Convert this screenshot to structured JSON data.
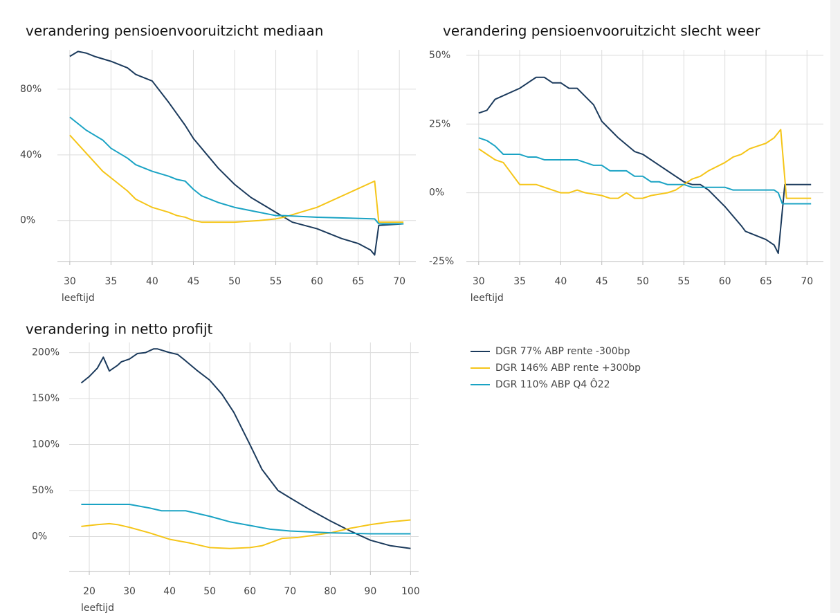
{
  "chart_data": [
    {
      "type": "line",
      "title": "verandering pensioenvooruitzicht mediaan",
      "xlabel": "leeftijd",
      "xlim": [
        28.5,
        72
      ],
      "xticks": [
        30,
        35,
        40,
        45,
        50,
        55,
        60,
        65,
        70
      ],
      "ylim": [
        -25,
        104
      ],
      "yticks": [
        {
          "value": 0,
          "label": "0%"
        },
        {
          "value": 40,
          "label": "40%"
        },
        {
          "value": 80,
          "label": "80%"
        }
      ],
      "grid": true,
      "series": [
        {
          "x": [
            30,
            31,
            32,
            33,
            35,
            37,
            38,
            40,
            42,
            44,
            45,
            47,
            48,
            50,
            52,
            55,
            57,
            60,
            63,
            65,
            66.5,
            67,
            67.5,
            70.5
          ],
          "values": [
            100,
            103,
            102,
            100,
            97,
            93,
            89,
            85,
            72,
            58,
            50,
            38,
            32,
            22,
            14,
            5,
            -1,
            -5,
            -11,
            -14,
            -18,
            -21,
            -3,
            -2
          ]
        },
        {
          "x": [
            30,
            32,
            34,
            35,
            37,
            38,
            40,
            42,
            43,
            44,
            45,
            46,
            48,
            50,
            53,
            55,
            56,
            60,
            67,
            67.5,
            70.5
          ],
          "values": [
            52,
            41,
            30,
            26,
            18,
            13,
            8,
            5,
            3,
            2,
            0,
            -1,
            -1,
            -1,
            0,
            1,
            2,
            8,
            24,
            -1,
            -1
          ]
        },
        {
          "x": [
            30,
            32,
            34,
            35,
            37,
            38,
            40,
            42,
            43,
            44,
            45,
            46,
            48,
            50,
            53,
            55,
            56,
            60,
            67,
            67.5,
            70.5
          ],
          "values": [
            63,
            55,
            49,
            44,
            38,
            34,
            30,
            27,
            25,
            24,
            19,
            15,
            11,
            8,
            5,
            3,
            3,
            2,
            1,
            -2,
            -2
          ]
        }
      ]
    },
    {
      "type": "line",
      "title": "verandering pensioenvooruitzicht slecht weer",
      "xlabel": "leeftijd",
      "xlim": [
        28.5,
        72
      ],
      "xticks": [
        30,
        35,
        40,
        45,
        50,
        55,
        60,
        65,
        70
      ],
      "ylim": [
        -25,
        52
      ],
      "yticks": [
        {
          "value": -25,
          "label": "-25%"
        },
        {
          "value": 0,
          "label": "0%"
        },
        {
          "value": 25,
          "label": "25%"
        },
        {
          "value": 50,
          "label": "50%"
        }
      ],
      "grid": true,
      "series": [
        {
          "x": [
            30,
            31,
            32,
            35,
            37,
            38,
            39,
            40,
            41,
            42,
            43,
            44,
            45,
            46,
            47,
            49,
            50,
            52,
            53,
            54,
            55,
            56,
            57,
            58,
            60,
            62,
            62.5,
            65,
            66,
            66.5,
            67.3,
            70.5
          ],
          "values": [
            29,
            30,
            34,
            38,
            42,
            42,
            40,
            40,
            38,
            38,
            35,
            32,
            26,
            23,
            20,
            15,
            14,
            10,
            8,
            6,
            4,
            3,
            3,
            1,
            -5,
            -12,
            -14,
            -17,
            -19,
            -22,
            3,
            3
          ]
        },
        {
          "x": [
            30,
            31,
            32,
            33,
            34,
            35,
            36,
            37,
            38,
            39,
            40,
            41,
            42,
            43,
            45,
            46,
            47,
            48,
            49,
            50,
            51,
            53,
            54,
            55,
            56,
            57,
            58,
            60,
            61,
            62,
            63,
            64,
            65,
            66,
            66.8,
            67.5,
            70.5
          ],
          "values": [
            16,
            14,
            12,
            11,
            7,
            3,
            3,
            3,
            2,
            1,
            0,
            0,
            1,
            0,
            -1,
            -2,
            -2,
            0,
            -2,
            -2,
            -1,
            0,
            1,
            3,
            5,
            6,
            8,
            11,
            13,
            14,
            16,
            17,
            18,
            20,
            23,
            -2,
            -2
          ]
        },
        {
          "x": [
            30,
            31,
            32,
            33,
            35,
            36,
            37,
            38,
            40,
            42,
            43,
            44,
            45,
            46,
            47,
            48,
            49,
            50,
            51,
            52,
            53,
            55,
            56,
            58,
            60,
            61,
            66,
            66.5,
            67,
            70.5
          ],
          "values": [
            20,
            19,
            17,
            14,
            14,
            13,
            13,
            12,
            12,
            12,
            11,
            10,
            10,
            8,
            8,
            8,
            6,
            6,
            4,
            4,
            3,
            3,
            2,
            2,
            2,
            1,
            1,
            0,
            -4,
            -4
          ]
        }
      ]
    },
    {
      "type": "line",
      "title": "verandering in netto profijt",
      "xlabel": "leeftijd",
      "xlim": [
        15,
        102
      ],
      "xticks": [
        20,
        30,
        40,
        50,
        60,
        70,
        80,
        90,
        100
      ],
      "ylim": [
        -38,
        211
      ],
      "yticks": [
        {
          "value": 0,
          "label": "0%"
        },
        {
          "value": 50,
          "label": "50%"
        },
        {
          "value": 100,
          "label": "100%"
        },
        {
          "value": 150,
          "label": "150%"
        },
        {
          "value": 200,
          "label": "200%"
        }
      ],
      "grid": true,
      "series": [
        {
          "x": [
            18,
            20,
            22,
            23.5,
            25,
            27,
            28,
            30,
            32,
            34,
            36,
            37,
            40,
            42,
            44,
            47,
            50,
            53,
            56,
            60,
            63,
            67,
            70,
            75,
            80,
            85,
            88,
            90,
            95,
            100
          ],
          "values": [
            167,
            174,
            183,
            195,
            180,
            186,
            190,
            193,
            199,
            200,
            204,
            204,
            200,
            198,
            191,
            180,
            170,
            155,
            135,
            100,
            73,
            50,
            42,
            29,
            17,
            6,
            0,
            -4,
            -10,
            -13
          ]
        },
        {
          "x": [
            18,
            22,
            25,
            27,
            30,
            35,
            40,
            45,
            50,
            55,
            60,
            63,
            68,
            72,
            80,
            85,
            90,
            95,
            100
          ],
          "values": [
            11,
            13,
            14,
            13,
            10,
            4,
            -3,
            -7,
            -12,
            -13,
            -12,
            -10,
            -2,
            -1,
            4,
            9,
            13,
            16,
            18
          ]
        },
        {
          "x": [
            18,
            30,
            35,
            38,
            44,
            47,
            50,
            55,
            60,
            65,
            70,
            80,
            90,
            100
          ],
          "values": [
            35,
            35,
            31,
            28,
            28,
            25,
            22,
            16,
            12,
            8,
            6,
            4,
            3,
            3
          ]
        }
      ]
    }
  ],
  "legend": [
    {
      "name": "DGR 77% ABP rente -300bp",
      "color": "#1b3a5c"
    },
    {
      "name": "DGR 146% ABP rente +300bp",
      "color": "#f5c518"
    },
    {
      "name": "DGR 110% ABP Q4 Ô22",
      "color": "#1aa3c4"
    }
  ]
}
